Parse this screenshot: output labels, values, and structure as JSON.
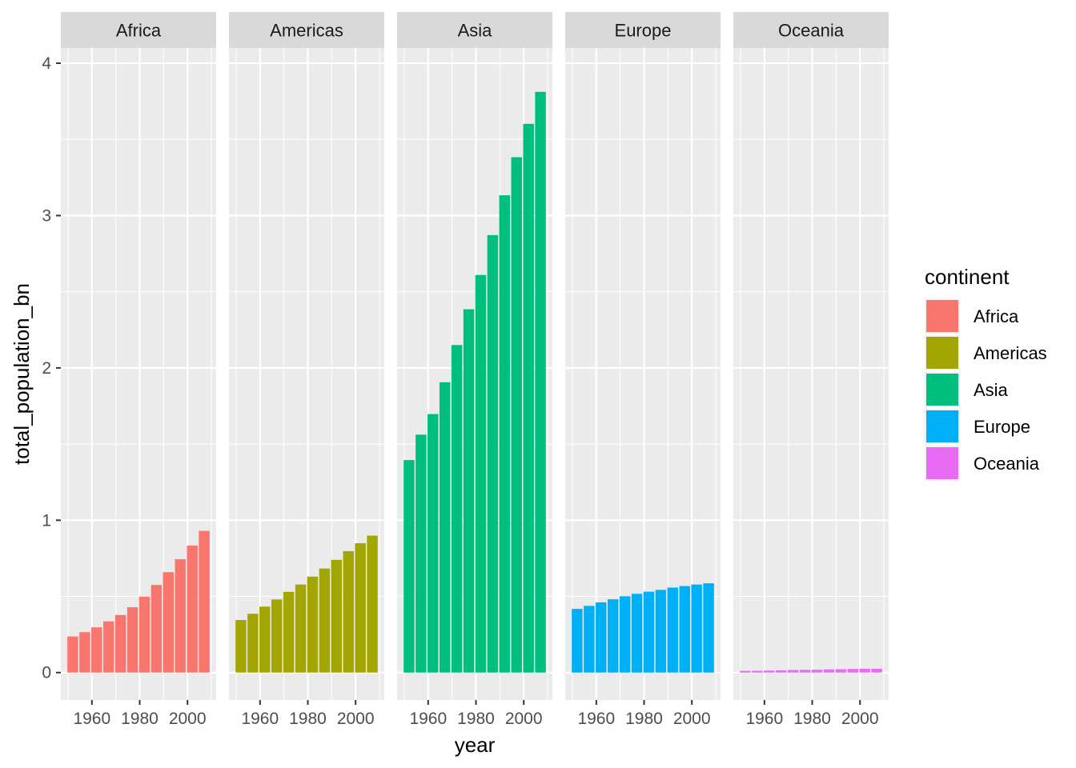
{
  "chart_data": {
    "type": "bar",
    "facet_by": "continent",
    "xlabel": "year",
    "ylabel": "total_population_bn",
    "x": [
      1952,
      1957,
      1962,
      1967,
      1972,
      1977,
      1982,
      1987,
      1992,
      1997,
      2002,
      2007
    ],
    "x_ticks": [
      1960,
      1980,
      2000
    ],
    "xlim": [
      1947,
      2012
    ],
    "y_ticks": [
      0,
      1,
      2,
      3,
      4
    ],
    "ylim": [
      -0.18,
      4.1
    ],
    "grid": true,
    "legend": {
      "title": "continent",
      "placement": "right"
    },
    "series": [
      {
        "name": "Africa",
        "color": "#F8766D",
        "values": [
          0.237,
          0.265,
          0.297,
          0.336,
          0.378,
          0.429,
          0.499,
          0.575,
          0.659,
          0.744,
          0.834,
          0.93
        ]
      },
      {
        "name": "Americas",
        "color": "#A3A500",
        "values": [
          0.345,
          0.386,
          0.433,
          0.48,
          0.53,
          0.578,
          0.63,
          0.683,
          0.74,
          0.797,
          0.849,
          0.899
        ]
      },
      {
        "name": "Asia",
        "color": "#00BF7D",
        "values": [
          1.395,
          1.562,
          1.697,
          1.906,
          2.15,
          2.385,
          2.61,
          2.872,
          3.133,
          3.383,
          3.602,
          3.812
        ]
      },
      {
        "name": "Europe",
        "color": "#00B0F6",
        "values": [
          0.418,
          0.438,
          0.461,
          0.481,
          0.501,
          0.517,
          0.531,
          0.543,
          0.558,
          0.568,
          0.578,
          0.586
        ]
      },
      {
        "name": "Oceania",
        "color": "#E76BF3",
        "values": [
          0.011,
          0.012,
          0.013,
          0.015,
          0.017,
          0.018,
          0.019,
          0.021,
          0.022,
          0.024,
          0.025,
          0.025
        ]
      }
    ]
  }
}
